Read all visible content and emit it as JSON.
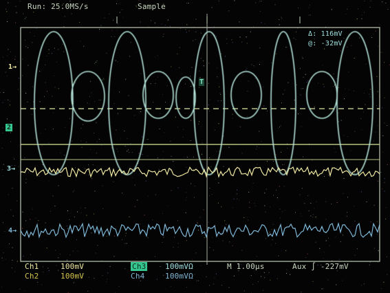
{
  "header": {
    "acquisition": "Run: 25.0MS/s",
    "mode": "Sample"
  },
  "cursor_readout": {
    "delta": "Δ: 116mV",
    "at": "@: -32mV"
  },
  "channel_markers": {
    "ch1": "1→",
    "ch3": "3→",
    "ch4": "4→",
    "trigger": "T",
    "ch2_ref": "2"
  },
  "status_bar": {
    "ch1_label": "Ch1",
    "ch1_scale": "100mV",
    "ch2_label": "Ch2",
    "ch2_scale": "100mV",
    "ch3_label": "Ch3",
    "ch3_scale": "100mVΩ",
    "ch4_label": "Ch4",
    "ch4_scale": "100mVΩ",
    "timebase": "M 1.00μs",
    "trigger": "Aux ∫ -227mV"
  },
  "colors": {
    "grid": "#b8c2b0",
    "ch1": "#f0e9a2",
    "ch2": "#d6c44b",
    "ch3": "#9fe0e0",
    "ch4": "#7fb8d8",
    "cursor": "#dfe8a0"
  }
}
